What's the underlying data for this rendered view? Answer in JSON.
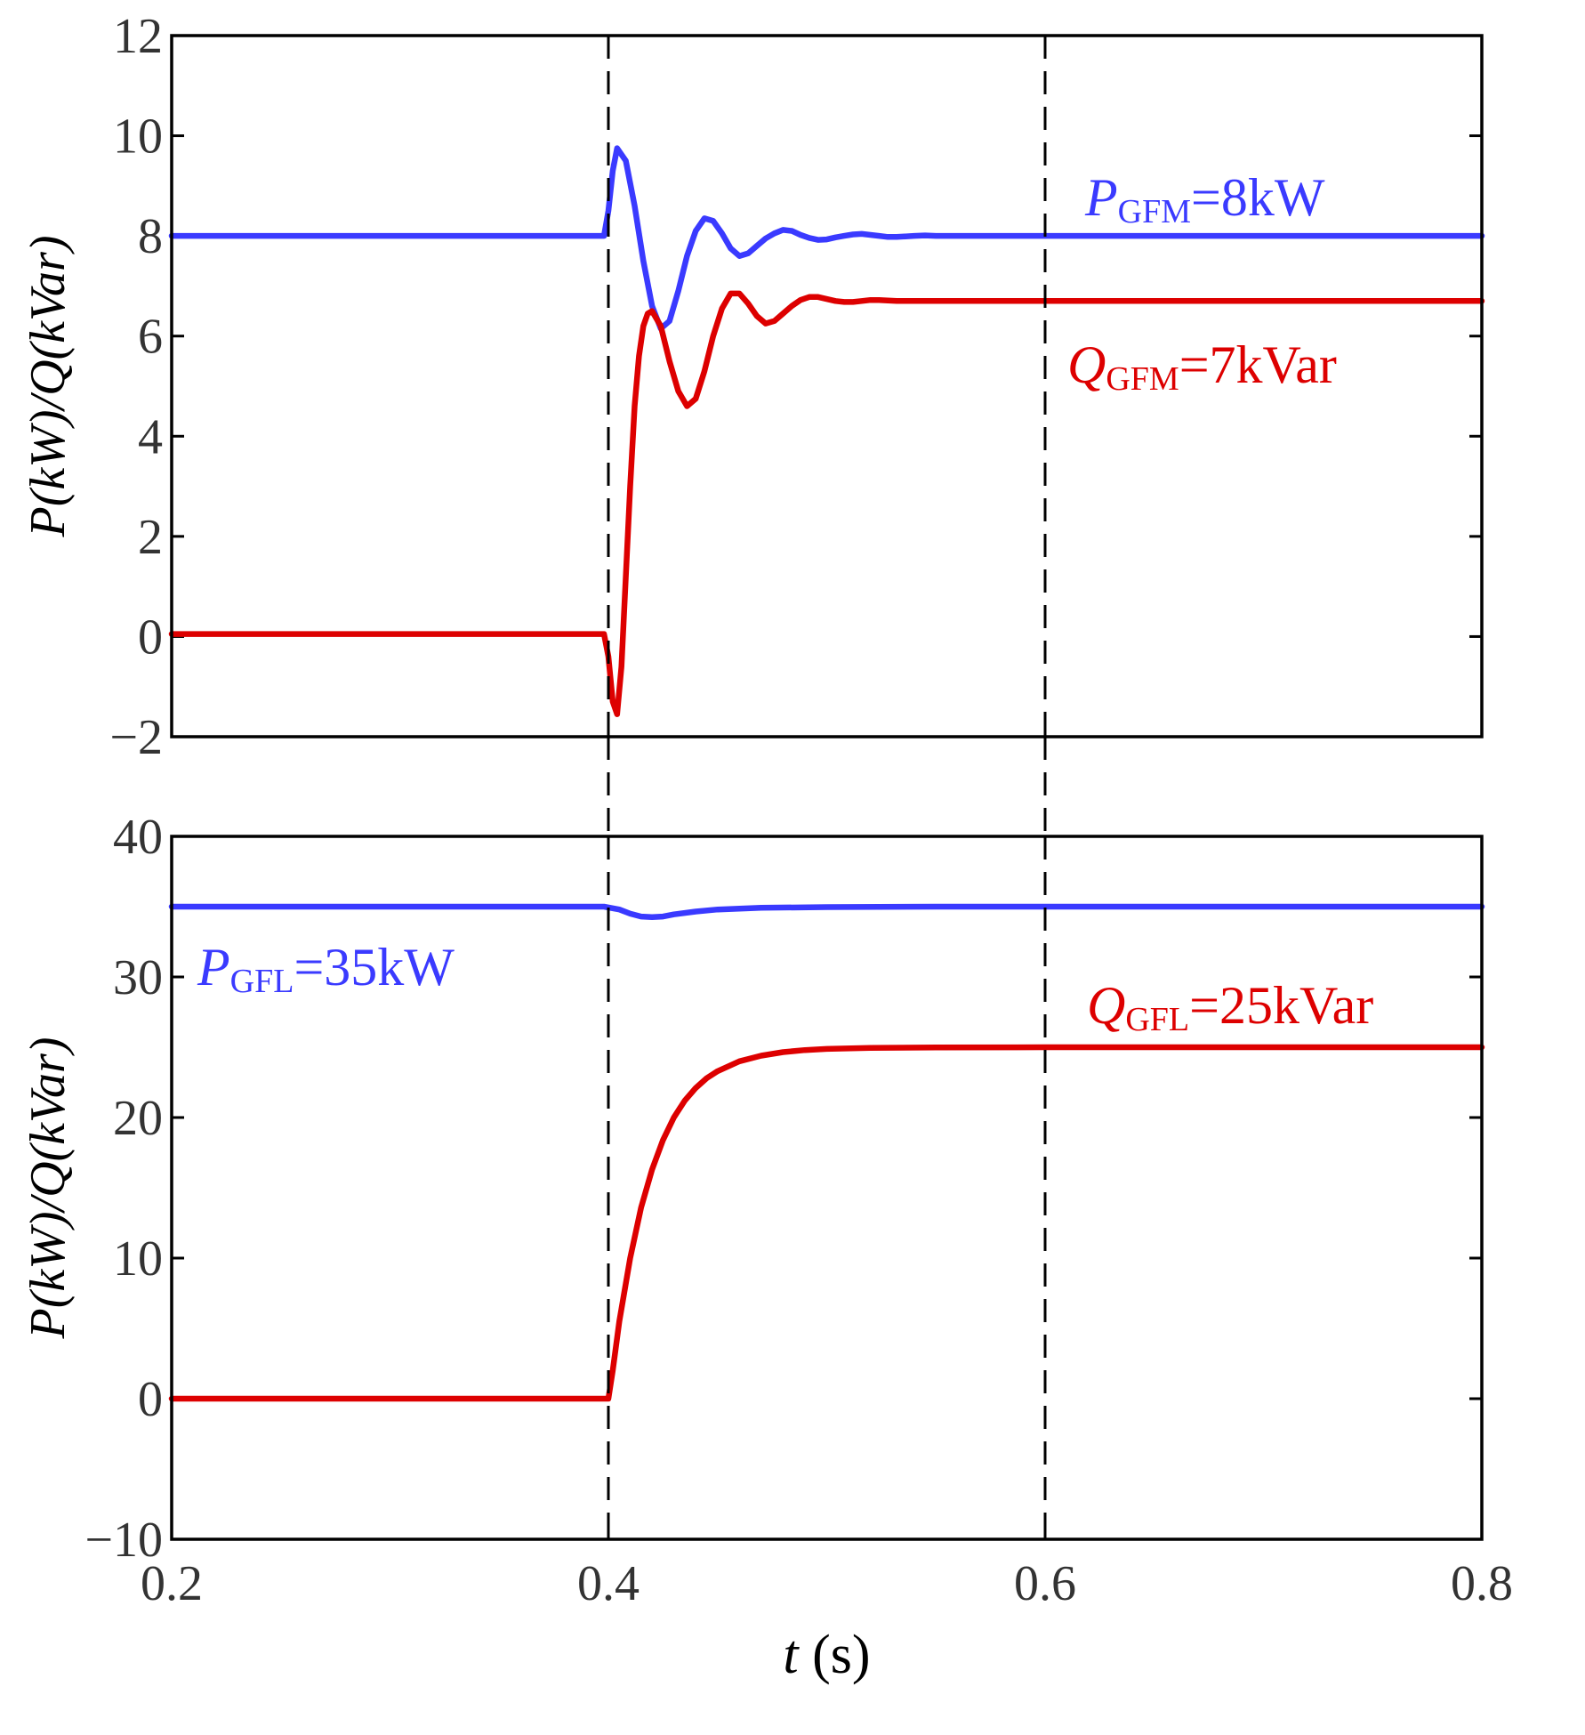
{
  "chart_data": [
    {
      "type": "line",
      "panel": "top",
      "ylabel": "P(kW)/Q(kVar)",
      "xlim": [
        0.2,
        0.8
      ],
      "ylim": [
        -2,
        12
      ],
      "yticks": [
        -2,
        0,
        2,
        4,
        6,
        8,
        10,
        12
      ],
      "ytick_labels": [
        "−2",
        "0",
        "2",
        "4",
        "6",
        "8",
        "10",
        "12"
      ],
      "vlines": [
        0.4,
        0.6
      ],
      "series": [
        {
          "name": "P_GFM",
          "color": "#3a3aff",
          "x": [
            0.2,
            0.398,
            0.4,
            0.402,
            0.404,
            0.408,
            0.412,
            0.416,
            0.42,
            0.424,
            0.428,
            0.432,
            0.436,
            0.44,
            0.444,
            0.448,
            0.452,
            0.456,
            0.46,
            0.464,
            0.468,
            0.472,
            0.476,
            0.48,
            0.484,
            0.488,
            0.492,
            0.496,
            0.5,
            0.504,
            0.508,
            0.512,
            0.516,
            0.52,
            0.524,
            0.528,
            0.532,
            0.536,
            0.54,
            0.545,
            0.55,
            0.56,
            0.57,
            0.58,
            0.6,
            0.8
          ],
          "y": [
            8.0,
            8.0,
            8.5,
            9.3,
            9.75,
            9.5,
            8.6,
            7.5,
            6.6,
            6.15,
            6.3,
            6.9,
            7.6,
            8.1,
            8.35,
            8.3,
            8.05,
            7.75,
            7.6,
            7.65,
            7.8,
            7.95,
            8.05,
            8.12,
            8.1,
            8.02,
            7.96,
            7.92,
            7.93,
            7.97,
            8.0,
            8.03,
            8.04,
            8.02,
            8.0,
            7.98,
            7.98,
            7.99,
            8.0,
            8.01,
            8.0,
            8.0,
            8.0,
            8.0,
            8.0,
            8.0
          ]
        },
        {
          "name": "Q_GFM",
          "color": "#dd0000",
          "x": [
            0.2,
            0.398,
            0.4,
            0.402,
            0.404,
            0.406,
            0.408,
            0.41,
            0.412,
            0.414,
            0.416,
            0.418,
            0.42,
            0.424,
            0.428,
            0.432,
            0.436,
            0.44,
            0.444,
            0.448,
            0.452,
            0.456,
            0.46,
            0.464,
            0.468,
            0.472,
            0.476,
            0.48,
            0.484,
            0.488,
            0.492,
            0.496,
            0.5,
            0.504,
            0.508,
            0.512,
            0.516,
            0.52,
            0.524,
            0.528,
            0.532,
            0.536,
            0.54,
            0.55,
            0.56,
            0.58,
            0.6,
            0.8
          ],
          "y": [
            0.05,
            0.05,
            -0.4,
            -1.3,
            -1.55,
            -0.6,
            1.2,
            3.0,
            4.6,
            5.6,
            6.2,
            6.45,
            6.5,
            6.2,
            5.5,
            4.9,
            4.6,
            4.75,
            5.3,
            6.0,
            6.55,
            6.85,
            6.85,
            6.65,
            6.4,
            6.25,
            6.3,
            6.45,
            6.6,
            6.72,
            6.78,
            6.78,
            6.74,
            6.7,
            6.68,
            6.68,
            6.7,
            6.72,
            6.72,
            6.71,
            6.7,
            6.7,
            6.7,
            6.7,
            6.7,
            6.7,
            6.7,
            6.7
          ]
        }
      ],
      "annotations": [
        {
          "var": "P",
          "sub": "GFM",
          "rest": "=8kW",
          "color": "#3a3aff"
        },
        {
          "var": "Q",
          "sub": "GFM",
          "rest": "=7kVar",
          "color": "#dd0000"
        }
      ]
    },
    {
      "type": "line",
      "panel": "bottom",
      "xlabel_var": "t",
      "xlabel_unit": " (s)",
      "ylabel": "P(kW)/Q(kVar)",
      "xlim": [
        0.2,
        0.8
      ],
      "ylim": [
        -10,
        40
      ],
      "yticks": [
        -10,
        0,
        10,
        20,
        30,
        40
      ],
      "ytick_labels": [
        "−10",
        "0",
        "10",
        "20",
        "30",
        "40"
      ],
      "xticks": [
        0.2,
        0.4,
        0.6,
        0.8
      ],
      "xtick_labels": [
        "0.2",
        "0.4",
        "0.6",
        "0.8"
      ],
      "vlines": [
        0.4,
        0.6
      ],
      "series": [
        {
          "name": "P_GFL",
          "color": "#3a3aff",
          "x": [
            0.2,
            0.398,
            0.405,
            0.41,
            0.415,
            0.42,
            0.425,
            0.43,
            0.44,
            0.45,
            0.47,
            0.5,
            0.55,
            0.6,
            0.8
          ],
          "y": [
            35.0,
            35.0,
            34.8,
            34.5,
            34.3,
            34.25,
            34.3,
            34.45,
            34.65,
            34.8,
            34.92,
            34.97,
            35.0,
            35.0,
            35.0
          ]
        },
        {
          "name": "Q_GFL",
          "color": "#dd0000",
          "x": [
            0.2,
            0.4,
            0.402,
            0.405,
            0.41,
            0.415,
            0.42,
            0.425,
            0.43,
            0.435,
            0.44,
            0.445,
            0.45,
            0.46,
            0.47,
            0.48,
            0.49,
            0.5,
            0.52,
            0.55,
            0.6,
            0.8
          ],
          "y": [
            0.0,
            0.0,
            2.0,
            5.5,
            10.0,
            13.6,
            16.3,
            18.4,
            20.0,
            21.2,
            22.1,
            22.8,
            23.3,
            24.0,
            24.4,
            24.65,
            24.8,
            24.88,
            24.95,
            24.98,
            25.0,
            25.0
          ]
        }
      ],
      "annotations": [
        {
          "var": "P",
          "sub": "GFL",
          "rest": "=35kW",
          "color": "#3a3aff"
        },
        {
          "var": "Q",
          "sub": "GFL",
          "rest": "=25kVar",
          "color": "#dd0000"
        }
      ]
    }
  ]
}
